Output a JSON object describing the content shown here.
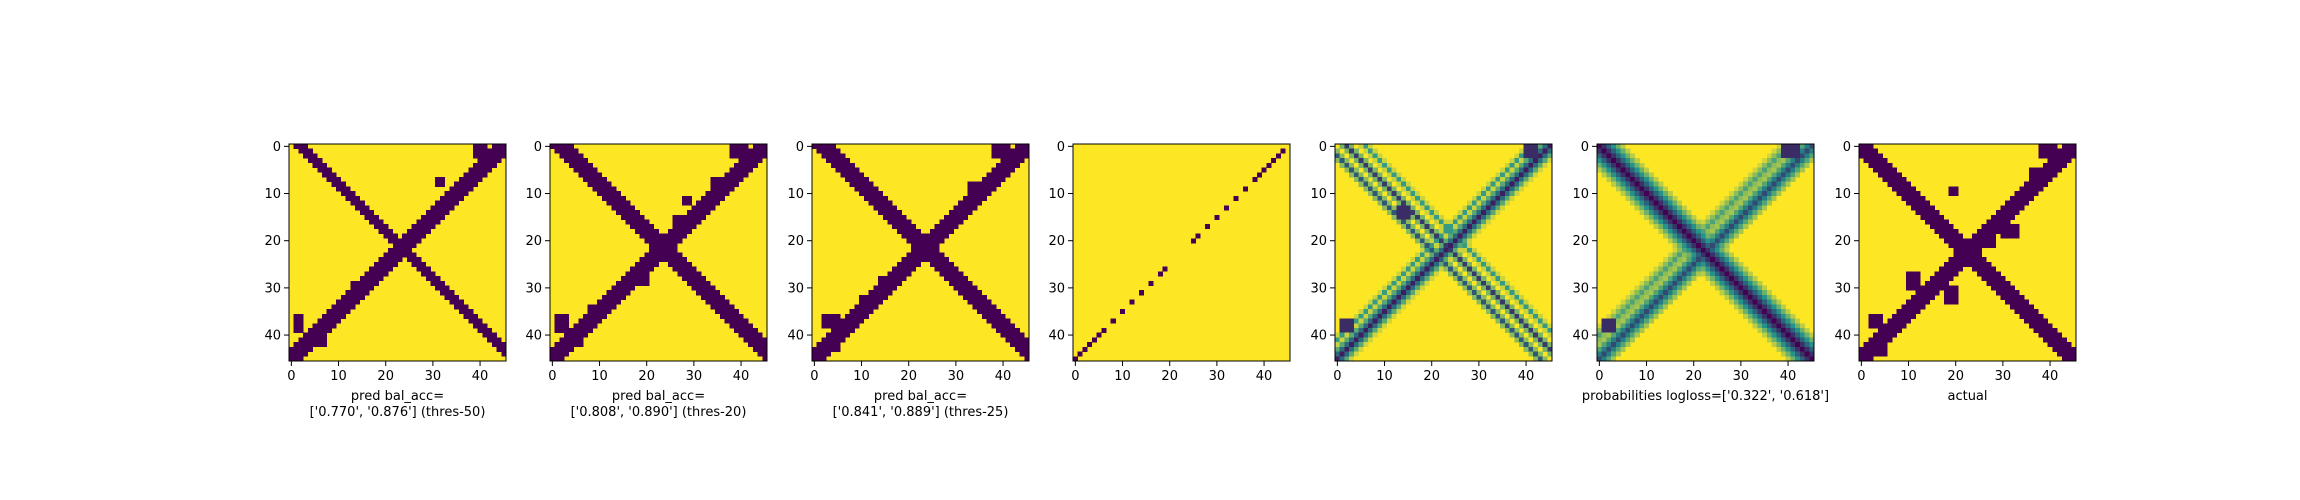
{
  "figure": {
    "background": "#ffffff"
  },
  "palette": {
    "low": "#440154",
    "mid": "#21918c",
    "high": "#fde725"
  },
  "chart_data": [
    {
      "type": "heatmap",
      "title": "",
      "xlabel": "pred bal_acc=\n['0.770', '0.876'] (thres-50)",
      "ylabel": "",
      "size": 46,
      "xticks": [
        0,
        10,
        20,
        30,
        40
      ],
      "yticks": [
        0,
        10,
        20,
        30,
        40
      ],
      "values_description": "binary matrix: 0 (dark) = contact predicted, 1 (yellow) = none",
      "bands": [
        {
          "kind": "anti",
          "sum": 45,
          "halfwidth": 1.6,
          "from": 0,
          "to": 45
        },
        {
          "kind": "main",
          "offset": 2,
          "halfwidth": 1.4,
          "from": 0,
          "to": 45
        }
      ],
      "blobs": [
        {
          "row": 0,
          "col": 39,
          "w": 3,
          "h": 3
        },
        {
          "row": 7,
          "col": 31,
          "w": 2,
          "h": 2
        },
        {
          "row": 3,
          "col": 42,
          "w": 2,
          "h": 2
        },
        {
          "row": 19,
          "col": 28,
          "w": 1,
          "h": 1
        },
        {
          "row": 29,
          "col": 13,
          "w": 1,
          "h": 2
        },
        {
          "row": 36,
          "col": 1,
          "w": 2,
          "h": 4
        },
        {
          "row": 41,
          "col": 6,
          "w": 2,
          "h": 2
        }
      ]
    },
    {
      "type": "heatmap",
      "title": "",
      "xlabel": "pred bal_acc=\n['0.808', '0.890'] (thres-20)",
      "ylabel": "",
      "size": 46,
      "xticks": [
        0,
        10,
        20,
        30,
        40
      ],
      "yticks": [
        0,
        10,
        20,
        30,
        40
      ],
      "bands": [
        {
          "kind": "anti",
          "sum": 45,
          "halfwidth": 1.8,
          "from": 0,
          "to": 45
        },
        {
          "kind": "main",
          "offset": 2,
          "halfwidth": 1.6,
          "from": 0,
          "to": 45
        }
      ],
      "blobs": [
        {
          "row": 0,
          "col": 38,
          "w": 4,
          "h": 3
        },
        {
          "row": 7,
          "col": 34,
          "w": 2,
          "h": 2
        },
        {
          "row": 11,
          "col": 28,
          "w": 2,
          "h": 2
        },
        {
          "row": 15,
          "col": 26,
          "w": 2,
          "h": 2
        },
        {
          "row": 19,
          "col": 27,
          "w": 1,
          "h": 1
        },
        {
          "row": 27,
          "col": 19,
          "w": 2,
          "h": 3
        },
        {
          "row": 34,
          "col": 8,
          "w": 2,
          "h": 2
        },
        {
          "row": 36,
          "col": 1,
          "w": 3,
          "h": 4
        },
        {
          "row": 41,
          "col": 5,
          "w": 2,
          "h": 2
        }
      ]
    },
    {
      "type": "heatmap",
      "title": "",
      "xlabel": "pred bal_acc=\n['0.841', '0.889'] (thres-25)",
      "ylabel": "",
      "size": 46,
      "xticks": [
        0,
        10,
        20,
        30,
        40
      ],
      "yticks": [
        0,
        10,
        20,
        30,
        40
      ],
      "bands": [
        {
          "kind": "anti",
          "sum": 45,
          "halfwidth": 2.1,
          "from": 0,
          "to": 45
        },
        {
          "kind": "main",
          "offset": 2,
          "halfwidth": 2.0,
          "from": 0,
          "to": 45
        }
      ],
      "blobs": [
        {
          "row": 0,
          "col": 38,
          "w": 4,
          "h": 3
        },
        {
          "row": 8,
          "col": 33,
          "w": 2,
          "h": 3
        },
        {
          "row": 13,
          "col": 30,
          "w": 2,
          "h": 3
        },
        {
          "row": 17,
          "col": 27,
          "w": 2,
          "h": 2
        },
        {
          "row": 20,
          "col": 22,
          "w": 5,
          "h": 5
        },
        {
          "row": 28,
          "col": 14,
          "w": 3,
          "h": 3
        },
        {
          "row": 32,
          "col": 10,
          "w": 2,
          "h": 3
        },
        {
          "row": 36,
          "col": 2,
          "w": 4,
          "h": 3
        },
        {
          "row": 42,
          "col": 4,
          "w": 2,
          "h": 2
        }
      ]
    },
    {
      "type": "heatmap",
      "title": "",
      "xlabel": "",
      "ylabel": "",
      "size": 46,
      "xticks": [
        0,
        10,
        20,
        30,
        40
      ],
      "yticks": [
        0,
        10,
        20,
        30,
        40
      ],
      "bands": [],
      "diagonal_dots": {
        "sum": 45,
        "cols": [
          0,
          1,
          2,
          3,
          4,
          5,
          6,
          8,
          10,
          12,
          14,
          16,
          18,
          19,
          25,
          26,
          28,
          30,
          32,
          34,
          36,
          38,
          39,
          40,
          41,
          42,
          43,
          44
        ]
      },
      "blobs": []
    },
    {
      "type": "heatmap",
      "title": "",
      "xlabel": "",
      "ylabel": "",
      "size": 46,
      "xticks": [
        0,
        10,
        20,
        30,
        40
      ],
      "yticks": [
        0,
        10,
        20,
        30,
        40
      ],
      "continuous": true,
      "bands": [
        {
          "kind": "anti",
          "sum": 45,
          "halfwidth": 1.5,
          "from": 0,
          "to": 45,
          "strength": 0.9
        },
        {
          "kind": "main",
          "offset": 2,
          "halfwidth": 0.7,
          "from": 0,
          "to": 45,
          "strength": 0.8
        },
        {
          "kind": "main",
          "offset": -2,
          "halfwidth": 0.7,
          "from": 0,
          "to": 45,
          "strength": 0.7
        },
        {
          "kind": "main",
          "offset": 6,
          "halfwidth": 0.6,
          "from": 0,
          "to": 45,
          "strength": 0.45
        },
        {
          "kind": "anti",
          "sum": 41,
          "halfwidth": 0.6,
          "from": 0,
          "to": 41,
          "strength": 0.45
        }
      ],
      "blobs": [
        {
          "row": 13,
          "col": 13,
          "w": 3,
          "h": 3
        },
        {
          "row": 0,
          "col": 40,
          "w": 3,
          "h": 3
        },
        {
          "row": 37,
          "col": 1,
          "w": 3,
          "h": 3
        }
      ]
    },
    {
      "type": "heatmap",
      "title": "",
      "xlabel": "probabilities logloss=['0.322', '0.618']",
      "ylabel": "",
      "size": 46,
      "xticks": [
        0,
        10,
        20,
        30,
        40
      ],
      "yticks": [
        0,
        10,
        20,
        30,
        40
      ],
      "continuous": true,
      "bands": [
        {
          "kind": "main",
          "offset": 0,
          "halfwidth": 2.6,
          "from": 0,
          "to": 45,
          "strength": 1.0
        },
        {
          "kind": "anti",
          "sum": 45,
          "halfwidth": 1.8,
          "from": 0,
          "to": 45,
          "strength": 0.75
        },
        {
          "kind": "anti",
          "sum": 40,
          "halfwidth": 1.2,
          "from": 0,
          "to": 40,
          "strength": 0.4
        }
      ],
      "blobs": [
        {
          "row": 0,
          "col": 39,
          "w": 4,
          "h": 3
        },
        {
          "row": 37,
          "col": 1,
          "w": 3,
          "h": 3
        }
      ]
    },
    {
      "type": "heatmap",
      "title": "",
      "xlabel": "actual",
      "ylabel": "",
      "size": 46,
      "xticks": [
        0,
        10,
        20,
        30,
        40
      ],
      "yticks": [
        0,
        10,
        20,
        30,
        40
      ],
      "bands": [
        {
          "kind": "main",
          "offset": 0,
          "halfwidth": 1.7,
          "from": 0,
          "to": 45
        },
        {
          "kind": "anti",
          "sum": 45,
          "halfwidth": 1.5,
          "from": 0,
          "to": 45
        }
      ],
      "blobs": [
        {
          "row": 0,
          "col": 38,
          "w": 4,
          "h": 3
        },
        {
          "row": 5,
          "col": 36,
          "w": 3,
          "h": 3
        },
        {
          "row": 9,
          "col": 19,
          "w": 2,
          "h": 2
        },
        {
          "row": 17,
          "col": 30,
          "w": 4,
          "h": 3
        },
        {
          "row": 20,
          "col": 26,
          "w": 3,
          "h": 2
        },
        {
          "row": 27,
          "col": 10,
          "w": 3,
          "h": 4
        },
        {
          "row": 30,
          "col": 18,
          "w": 3,
          "h": 4
        },
        {
          "row": 36,
          "col": 2,
          "w": 3,
          "h": 3
        },
        {
          "row": 43,
          "col": 4,
          "w": 2,
          "h": 2
        }
      ]
    }
  ]
}
